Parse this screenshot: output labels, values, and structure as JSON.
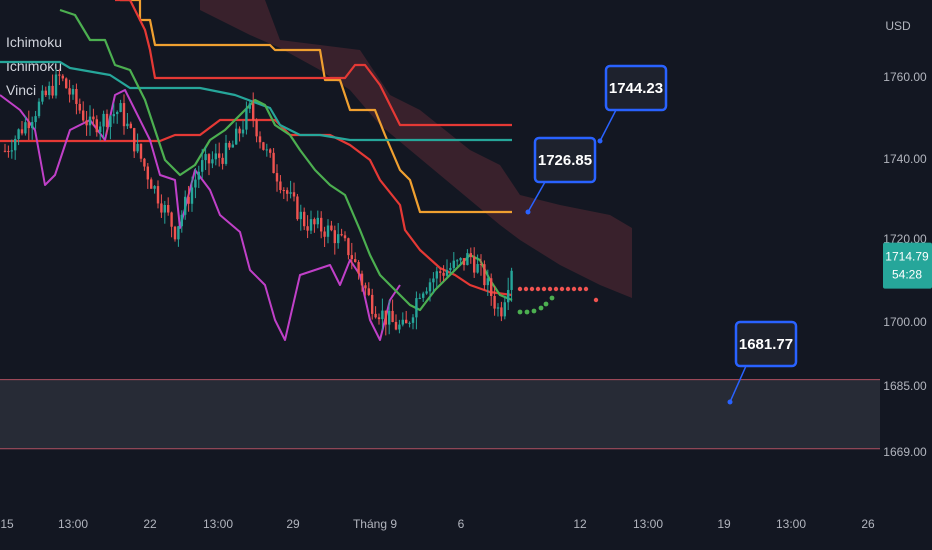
{
  "legend": [
    "Ichimoku",
    "Ichimoku",
    "Vinci"
  ],
  "chart_data": {
    "type": "candlestick",
    "currency": "USD",
    "y_ticks": [
      1760.0,
      1740.0,
      1720.0,
      1700.0,
      1685.0,
      1669.0
    ],
    "x_ticks": [
      "15",
      "13:00",
      "22",
      "13:00",
      "29",
      "Tháng 9",
      "6",
      "12",
      "13:00",
      "19",
      "13:00",
      "26"
    ],
    "last_price": "1714.79",
    "countdown": "54:28",
    "callouts": [
      "1744.23",
      "1726.85",
      "1681.77"
    ],
    "support_zone": [
      1669.0,
      1686.5
    ],
    "colors": {
      "background": "#131722",
      "up": "#26a69a",
      "down": "#ef5350",
      "tenkan": "#4caf50",
      "kijun_red": "#e53935",
      "kijun_orange": "#f0a030",
      "teal_line": "#26a69a",
      "vinci": "#c040c8",
      "callout_border": "#2962ff",
      "cloud": "#5a2a35"
    }
  }
}
